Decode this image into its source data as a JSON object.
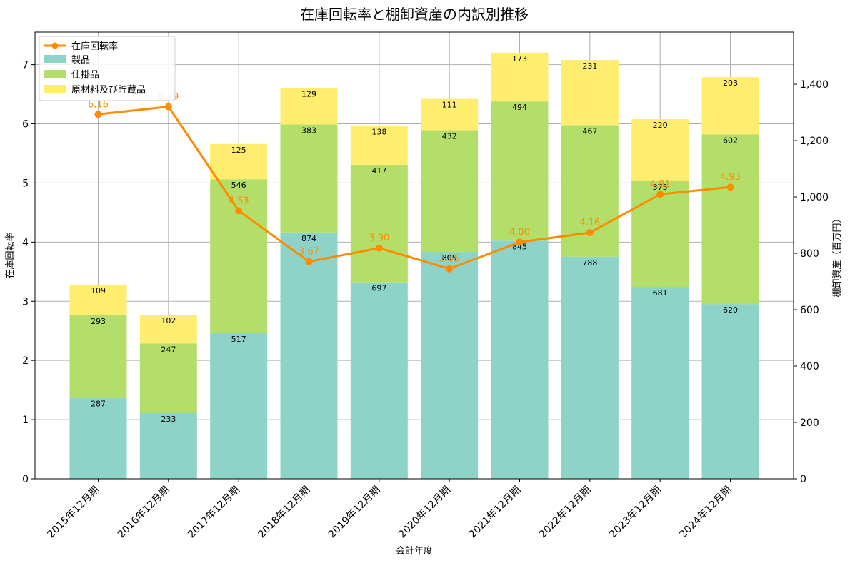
{
  "chart_data": {
    "type": "bar",
    "title": "在庫回転率と棚卸資産の内訳別推移",
    "xlabel": "会計年度",
    "ylabel_left": "在庫回転率",
    "ylabel_right": "棚卸資産（百万円）",
    "categories": [
      "2015年12月期",
      "2016年12月期",
      "2017年12月期",
      "2018年12月期",
      "2019年12月期",
      "2020年12月期",
      "2021年12月期",
      "2022年12月期",
      "2023年12月期",
      "2024年12月期"
    ],
    "bar_series": [
      {
        "name": "製品",
        "color": "#8dd3c7",
        "values": [
          287,
          233,
          517,
          874,
          697,
          805,
          845,
          788,
          681,
          620
        ]
      },
      {
        "name": "仕掛品",
        "color": "#b3de69",
        "values": [
          293,
          247,
          546,
          383,
          417,
          432,
          494,
          467,
          375,
          602
        ]
      },
      {
        "name": "原材料及び貯蔵品",
        "color": "#ffed6f",
        "values": [
          109,
          102,
          125,
          129,
          138,
          111,
          173,
          231,
          220,
          203
        ]
      }
    ],
    "line_series": {
      "name": "在庫回転率",
      "color": "#ff8c00",
      "values": [
        6.16,
        6.29,
        4.53,
        3.67,
        3.9,
        3.55,
        4.0,
        4.16,
        4.81,
        4.93
      ],
      "labels": [
        "6.16",
        "6.29",
        "4.53",
        "3.67",
        "3.90",
        "3.55",
        "4.00",
        "4.16",
        "4.81",
        "4.93"
      ]
    },
    "ylim_left": [
      0,
      7.55
    ],
    "yticks_left": [
      "0",
      "1",
      "2",
      "3",
      "4",
      "5",
      "6",
      "7"
    ],
    "ylim_right": [
      0,
      1585
    ],
    "yticks_right": [
      "0",
      "200",
      "400",
      "600",
      "800",
      "1,000",
      "1,200",
      "1,400"
    ],
    "grid": true,
    "legend_position": "top-left"
  }
}
